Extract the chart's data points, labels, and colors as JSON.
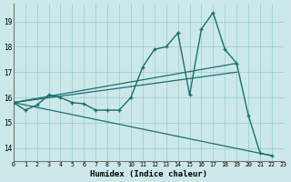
{
  "xlabel": "Humidex (Indice chaleur)",
  "background_color": "#cce8e8",
  "line_color": "#1a7070",
  "grid_color": "#99cccc",
  "xlim": [
    0,
    23
  ],
  "ylim": [
    13.5,
    19.7
  ],
  "yticks": [
    14,
    15,
    16,
    17,
    18,
    19
  ],
  "xticks": [
    0,
    1,
    2,
    3,
    4,
    5,
    6,
    7,
    8,
    9,
    10,
    11,
    12,
    13,
    14,
    15,
    16,
    17,
    18,
    19,
    20,
    21,
    22,
    23
  ],
  "line1_x": [
    0,
    1,
    2,
    3,
    4,
    5,
    6,
    7,
    8,
    9,
    10,
    11,
    12,
    13,
    14,
    15,
    16,
    17,
    18,
    19,
    20,
    21,
    22
  ],
  "line1_y": [
    15.8,
    15.5,
    15.7,
    16.1,
    16.0,
    15.8,
    15.75,
    15.5,
    15.5,
    15.5,
    16.0,
    17.2,
    17.9,
    18.0,
    18.55,
    16.1,
    18.7,
    19.35,
    17.9,
    17.35,
    15.3,
    13.8,
    13.7
  ],
  "trend1_x": [
    0,
    19
  ],
  "trend1_y": [
    15.8,
    17.35
  ],
  "trend2_x": [
    0,
    22
  ],
  "trend2_y": [
    15.8,
    13.7
  ],
  "trend3_x": [
    0,
    19
  ],
  "trend3_y": [
    15.8,
    17.0
  ]
}
